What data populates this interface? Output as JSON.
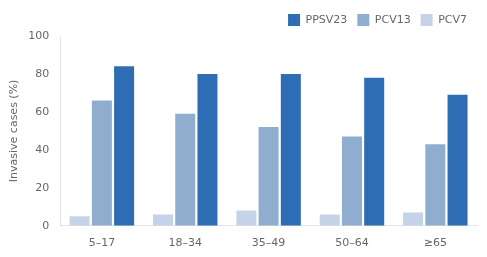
{
  "chart_data": {
    "type": "bar",
    "categories": [
      "5–17",
      "18–34",
      "35–49",
      "50–64",
      "≥65"
    ],
    "series": [
      {
        "name": "PCV7",
        "color": "#c5d3e8",
        "values": [
          5,
          6,
          8,
          6,
          7
        ]
      },
      {
        "name": "PCV13",
        "color": "#8faecf",
        "values": [
          66,
          59,
          52,
          47,
          43
        ]
      },
      {
        "name": "PPSV23",
        "color": "#2e6db4",
        "values": [
          84,
          80,
          80,
          78,
          69
        ]
      }
    ],
    "ylabel": "Invasive cases (%)",
    "ylim": [
      0,
      100
    ],
    "yticks": [
      0,
      20,
      40,
      60,
      80,
      100
    ],
    "grid": false,
    "legend": "upper right"
  }
}
